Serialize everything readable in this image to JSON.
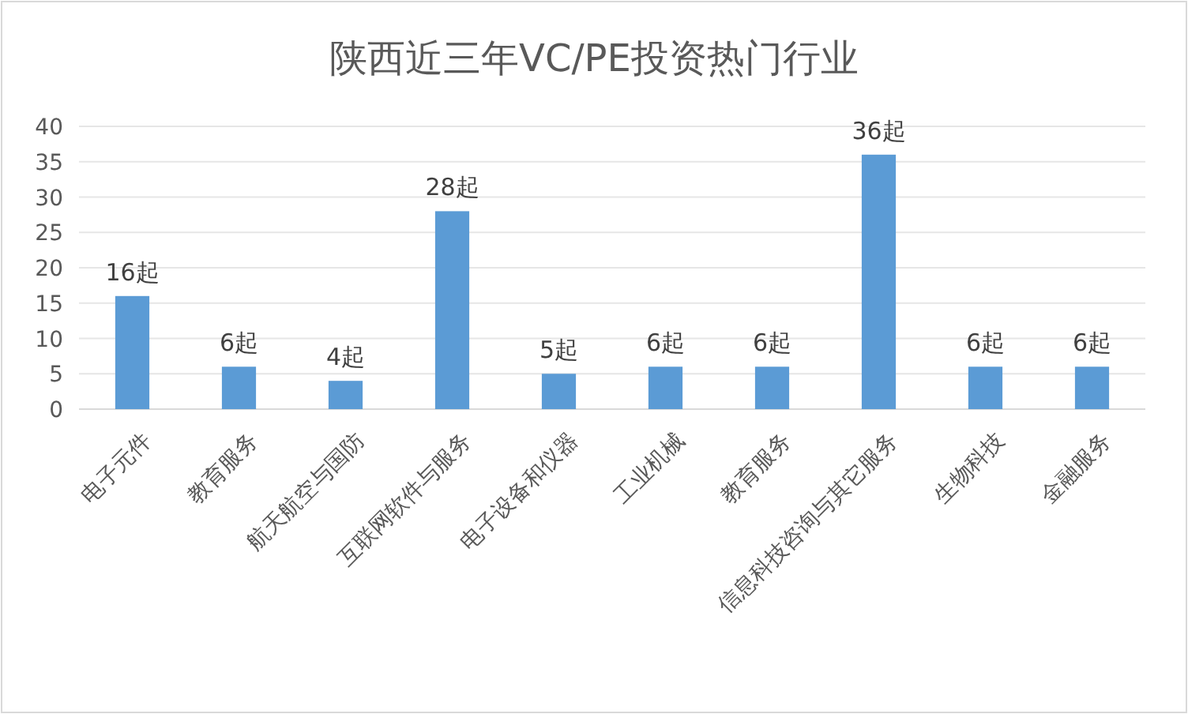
{
  "chart_data": {
    "type": "bar",
    "title": "陕西近三年VC/PE投资热门行业",
    "categories": [
      "电子元件",
      "教育服务",
      "航天航空与国防",
      "互联网软件与服务",
      "电子设备和仪器",
      "工业机械",
      "教育服务",
      "信息科技咨询与其它服务",
      "生物科技",
      "金融服务"
    ],
    "values": [
      16,
      6,
      4,
      28,
      5,
      6,
      6,
      36,
      6,
      6
    ],
    "value_labels": [
      "16起",
      "6起",
      "4起",
      "28起",
      "5起",
      "6起",
      "6起",
      "36起",
      "6起",
      "6起"
    ],
    "color": "#5b9bd5",
    "ylim": [
      0,
      40
    ],
    "yticks": [
      0,
      5,
      10,
      15,
      20,
      25,
      30,
      35,
      40
    ],
    "grid": "y"
  }
}
